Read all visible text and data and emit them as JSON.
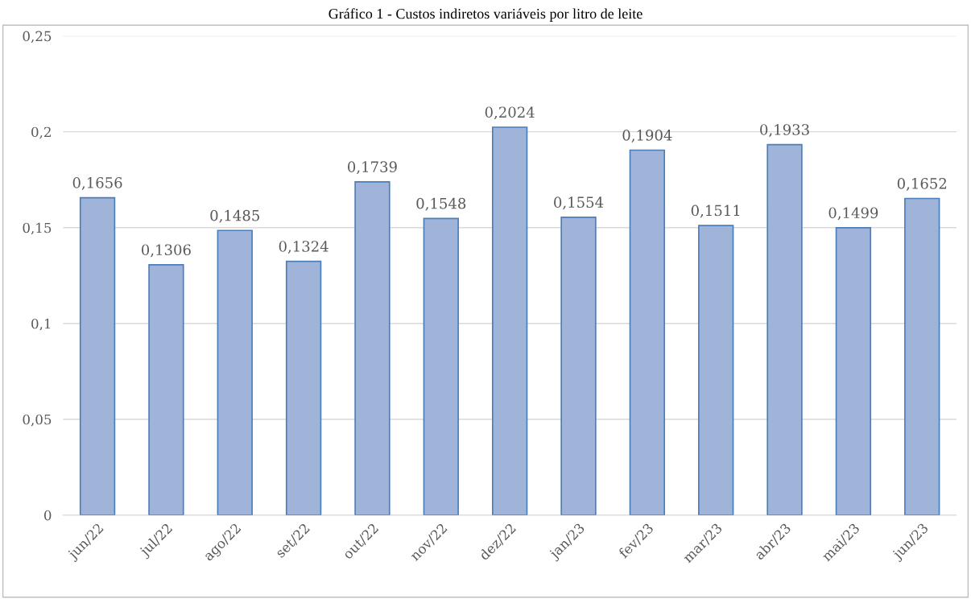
{
  "chart_data": {
    "type": "bar",
    "title": "Gráfico 1 - Custos indiretos variáveis por litro de leite",
    "categories": [
      "jun/22",
      "jul/22",
      "ago/22",
      "set/22",
      "out/22",
      "nov/22",
      "dez/22",
      "jan/23",
      "fev/23",
      "mar/23",
      "abr/23",
      "mai/23",
      "jun/23"
    ],
    "values": [
      0.1656,
      0.1306,
      0.1485,
      0.1324,
      0.1739,
      0.1548,
      0.2024,
      0.1554,
      0.1904,
      0.1511,
      0.1933,
      0.1499,
      0.1652
    ],
    "value_labels": [
      "0,1656",
      "0,1306",
      "0,1485",
      "0,1324",
      "0,1739",
      "0,1548",
      "0,2024",
      "0,1554",
      "0,1904",
      "0,1511",
      "0,1933",
      "0,1499",
      "0,1652"
    ],
    "color": "#a0b4da",
    "ylim": [
      0,
      0.25
    ],
    "yticks": [
      0,
      {
        "value": 0.05,
        "label": "0,05"
      },
      {
        "value": 0.1,
        "label": "0,1"
      },
      {
        "value": 0.15,
        "label": "0,15"
      },
      {
        "value": 0.2,
        "label": "0,2"
      },
      {
        "value": 0.25,
        "label": "0,25"
      }
    ],
    "grid": "y"
  }
}
